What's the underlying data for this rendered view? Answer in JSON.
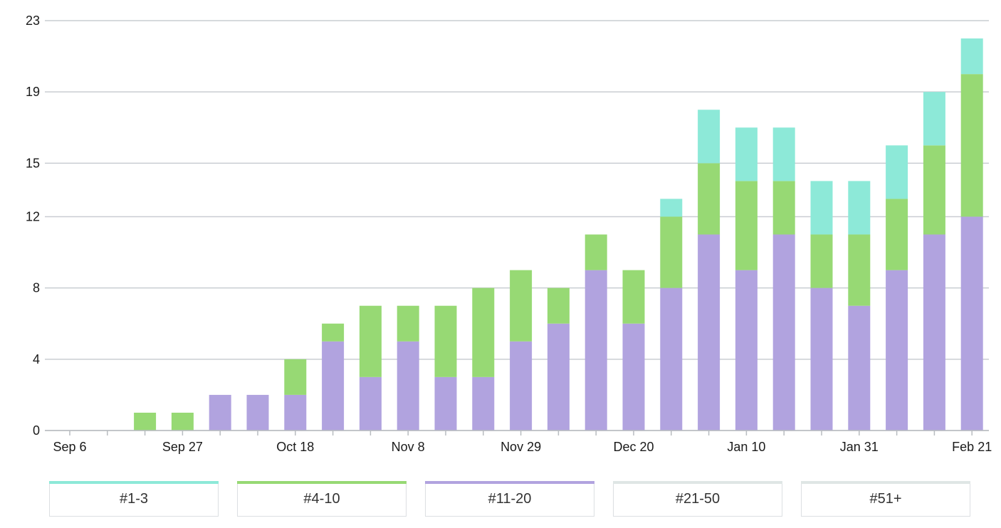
{
  "chart_data": {
    "type": "bar",
    "stacked": true,
    "y_ticks": [
      "0",
      "4",
      "8",
      "12",
      "15",
      "19",
      "23"
    ],
    "ylim": [
      0,
      23
    ],
    "x_labels": [
      "Sep 6",
      "Sep 27",
      "Oct 18",
      "Nov 8",
      "Nov 29",
      "Dec 20",
      "Jan 10",
      "Jan 31",
      "Feb 21"
    ],
    "categories": [
      "Sep 6",
      "Sep 13",
      "Sep 20",
      "Sep 27",
      "Oct 4",
      "Oct 11",
      "Oct 18",
      "Oct 25",
      "Nov 1",
      "Nov 8",
      "Nov 15",
      "Nov 22",
      "Nov 29",
      "Dec 6",
      "Dec 13",
      "Dec 20",
      "Dec 27",
      "Jan 3",
      "Jan 10",
      "Jan 17",
      "Jan 24",
      "Jan 31",
      "Feb 7",
      "Feb 14",
      "Feb 21"
    ],
    "series": [
      {
        "name": "#11-20",
        "color": "#b1a3df",
        "values": [
          0,
          0,
          0,
          0,
          2,
          2,
          2,
          5,
          3,
          5,
          3,
          3,
          5,
          6,
          9,
          6,
          8,
          11,
          9,
          11,
          8,
          7,
          9,
          11,
          12
        ]
      },
      {
        "name": "#4-10",
        "color": "#97d974",
        "values": [
          0,
          0,
          1,
          1,
          0,
          0,
          2,
          1,
          4,
          2,
          4,
          5,
          4,
          2,
          2,
          3,
          4,
          4,
          5,
          3,
          3,
          4,
          4,
          5,
          8
        ]
      },
      {
        "name": "#1-3",
        "color": "#8de9d8",
        "values": [
          0,
          0,
          0,
          0,
          0,
          0,
          0,
          0,
          0,
          0,
          0,
          0,
          0,
          0,
          0,
          0,
          1,
          3,
          3,
          3,
          3,
          3,
          3,
          3,
          2
        ]
      }
    ],
    "grid": true
  },
  "legend": [
    {
      "label": "#1-3",
      "color": "#8de9d8"
    },
    {
      "label": "#4-10",
      "color": "#97d974"
    },
    {
      "label": "#11-20",
      "color": "#b1a3df"
    },
    {
      "label": "#21-50",
      "color": "#dfe6e5"
    },
    {
      "label": "#51+",
      "color": "#dfe6e5"
    }
  ]
}
